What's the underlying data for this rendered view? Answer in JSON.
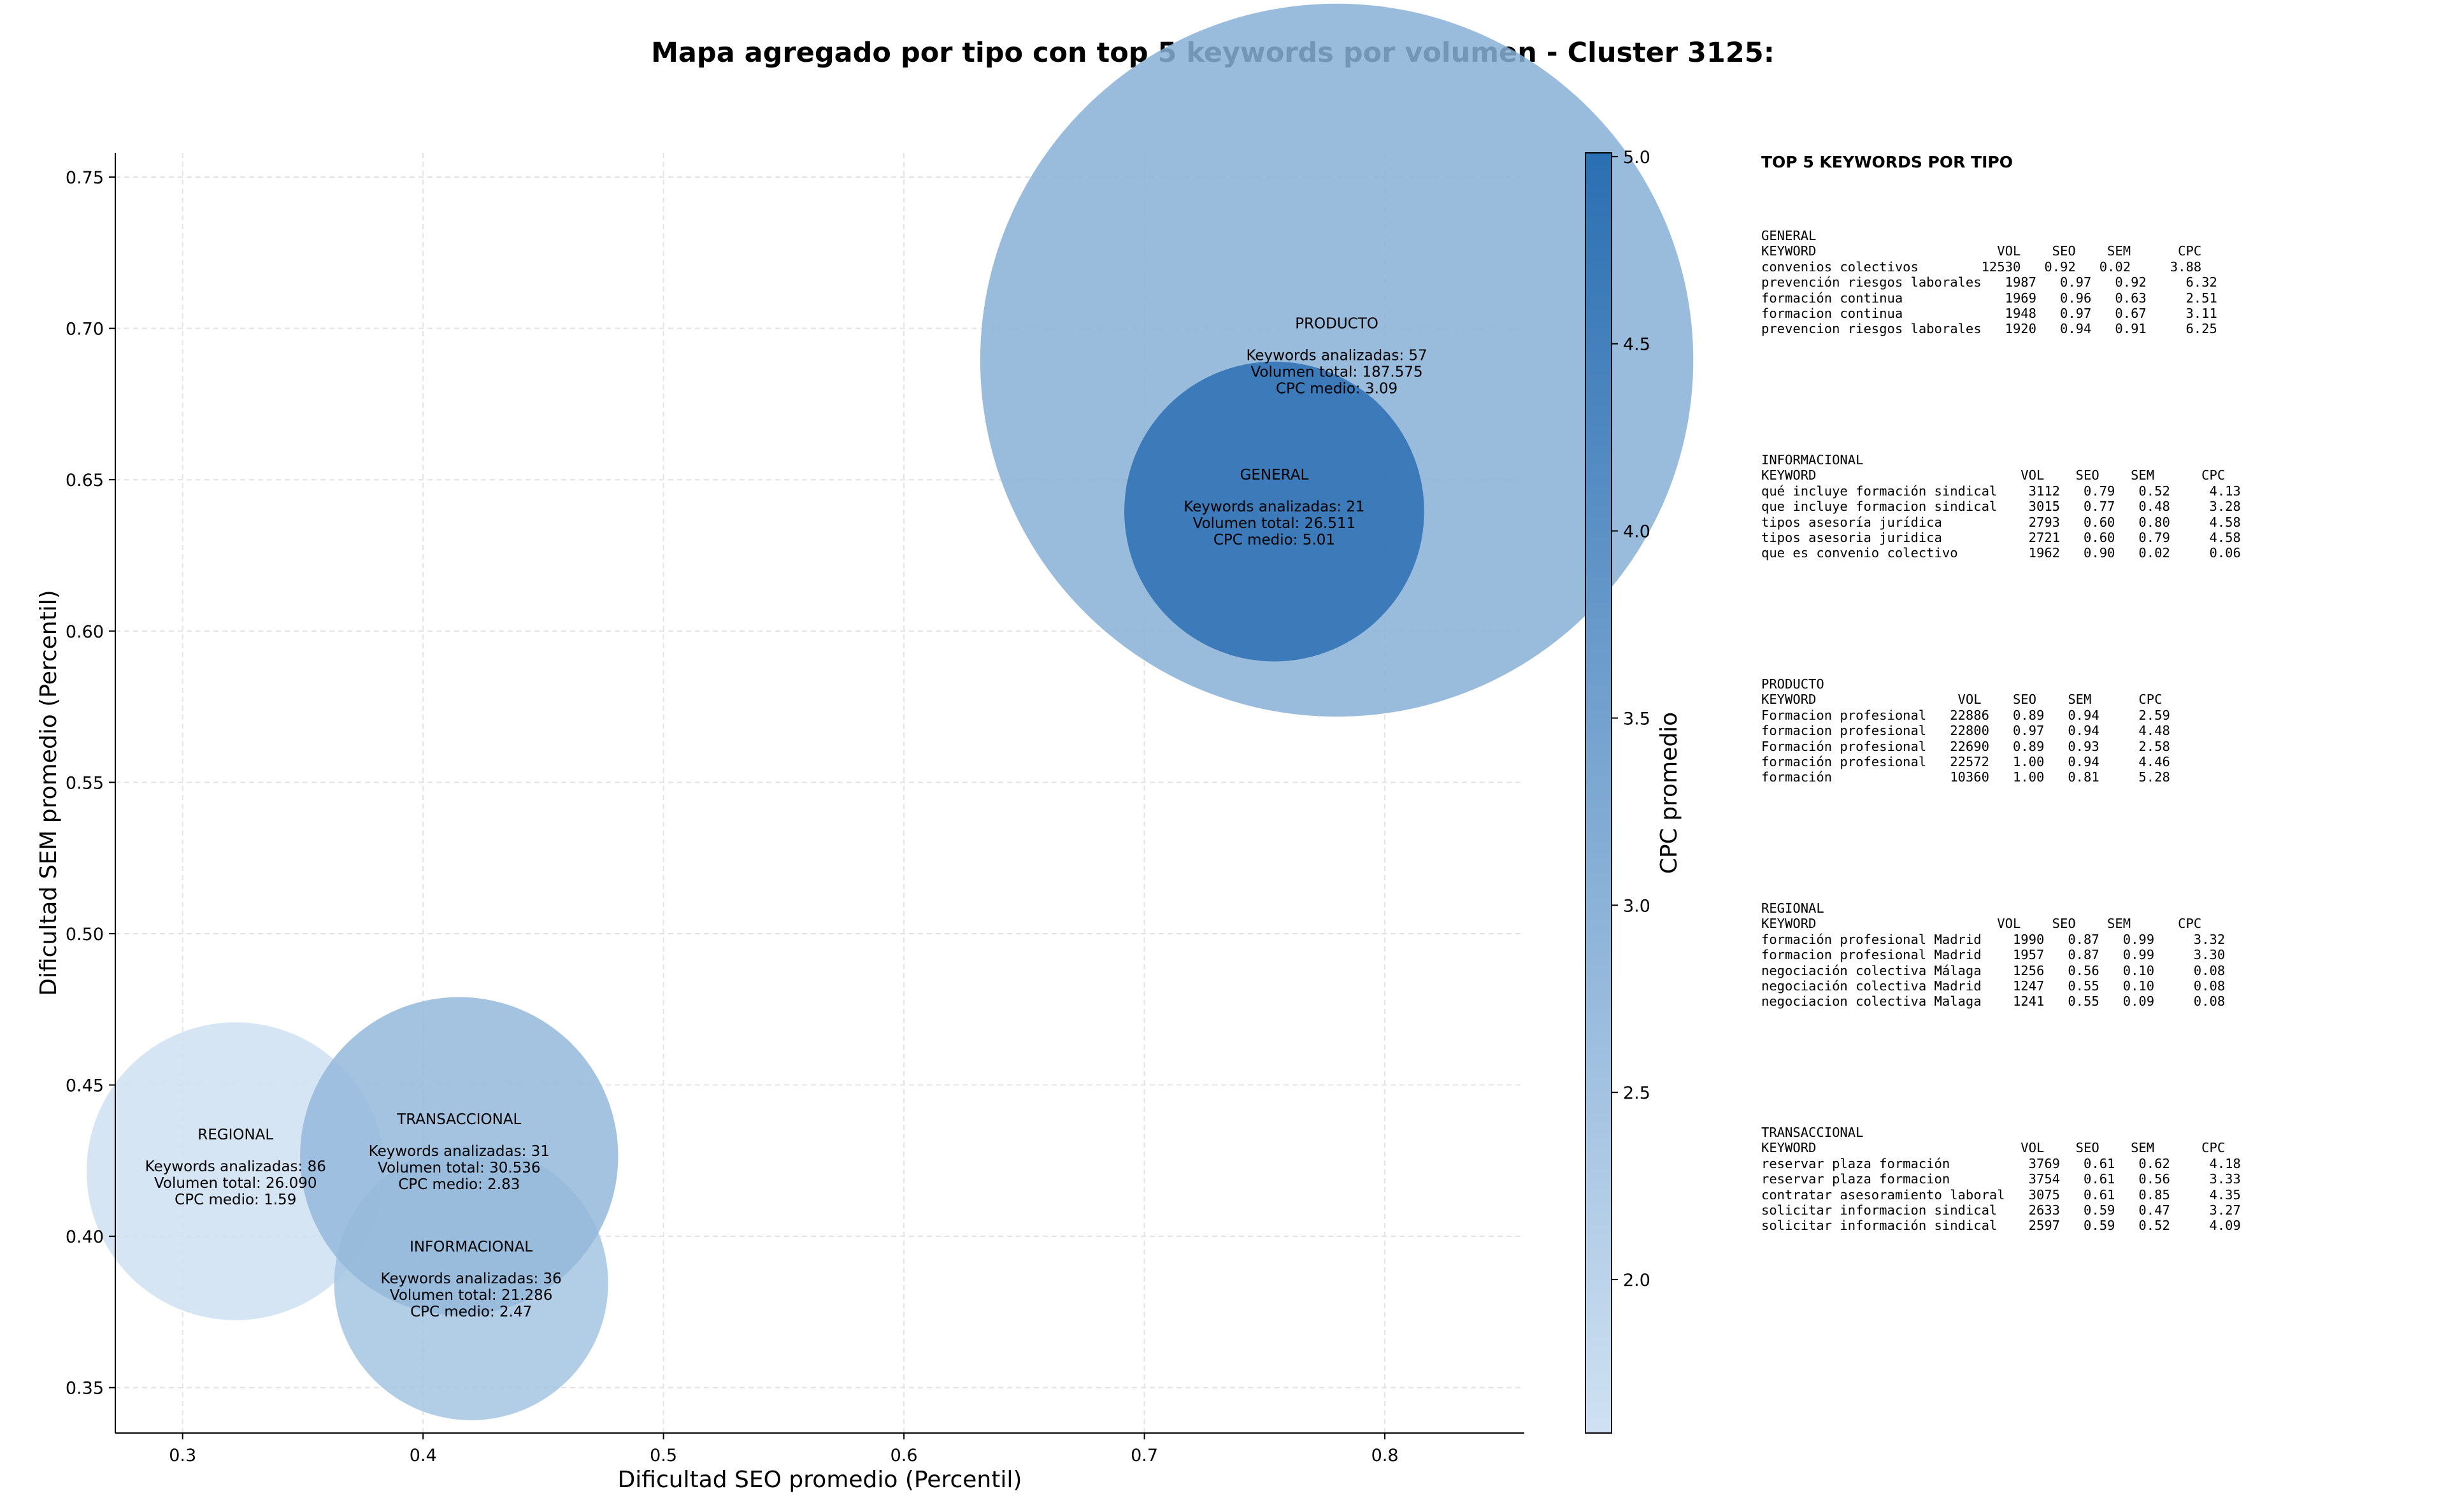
{
  "chart_data": {
    "type": "scatter",
    "title": "Mapa agregado por tipo con top 5 keywords por volumen - Cluster 3125:",
    "xlabel": "Dificultad SEO promedio (Percentil)",
    "ylabel": "Dificultad SEM promedio (Percentil)",
    "xlim": [
      0.272,
      0.858
    ],
    "ylim": [
      0.335,
      0.758
    ],
    "xticks": [
      "0.3",
      "0.4",
      "0.5",
      "0.6",
      "0.7",
      "0.8"
    ],
    "yticks": [
      "0.35",
      "0.40",
      "0.45",
      "0.50",
      "0.55",
      "0.60",
      "0.65",
      "0.70",
      "0.75"
    ],
    "grid": true,
    "colorbar": {
      "label": "CPC promedio",
      "range": [
        1.59,
        5.01
      ],
      "ticks": [
        "2.0",
        "2.5",
        "3.0",
        "3.5",
        "4.0",
        "4.5",
        "5.0"
      ],
      "color_low": "#cfe1f2",
      "color_high": "#2b6fb3"
    },
    "points": [
      {
        "label": "REGIONAL",
        "x": 0.322,
        "y": 0.4215,
        "keywords": 86,
        "volume": 26090,
        "cpc": 1.59,
        "text_keywords": "Keywords analizadas: 86",
        "text_volume": "Volumen total: 26.090",
        "text_cpc": "CPC medio: 1.59"
      },
      {
        "label": "TRANSACCIONAL",
        "x": 0.415,
        "y": 0.4265,
        "keywords": 31,
        "volume": 30536,
        "cpc": 2.83,
        "text_keywords": "Keywords analizadas: 31",
        "text_volume": "Volumen total: 30.536",
        "text_cpc": "CPC medio: 2.83"
      },
      {
        "label": "INFORMACIONAL",
        "x": 0.42,
        "y": 0.3845,
        "keywords": 36,
        "volume": 21286,
        "cpc": 2.47,
        "text_keywords": "Keywords analizadas: 36",
        "text_volume": "Volumen total: 21.286",
        "text_cpc": "CPC medio: 2.47"
      },
      {
        "label": "GENERAL",
        "x": 0.754,
        "y": 0.6395,
        "keywords": 21,
        "volume": 26511,
        "cpc": 5.01,
        "text_keywords": "Keywords analizadas: 21",
        "text_volume": "Volumen total: 26.511",
        "text_cpc": "CPC medio: 5.01"
      },
      {
        "label": "PRODUCTO",
        "x": 0.78,
        "y": 0.6895,
        "keywords": 57,
        "volume": 187575,
        "cpc": 3.09,
        "text_keywords": "Keywords analizadas: 57",
        "text_volume": "Volumen total: 187.575",
        "text_cpc": "CPC medio: 3.09"
      }
    ]
  },
  "side_panel": {
    "title": "TOP 5 KEYWORDS POR TIPO",
    "blocks": [
      {
        "type": "GENERAL",
        "header": "KEYWORD                       VOL    SEO    SEM      CPC",
        "rows": [
          "convenios colectivos        12530   0.92   0.02     3.88",
          "prevención riesgos laborales   1987   0.97   0.92     6.32",
          "formación continua             1969   0.96   0.63     2.51",
          "formacion continua             1948   0.97   0.67     3.11",
          "prevencion riesgos laborales   1920   0.94   0.91     6.25"
        ]
      },
      {
        "type": "INFORMACIONAL",
        "header": "KEYWORD                          VOL    SEO    SEM      CPC",
        "rows": [
          "qué incluye formación sindical    3112   0.79   0.52     4.13",
          "que incluye formacion sindical    3015   0.77   0.48     3.28",
          "tipos asesoría jurídica           2793   0.60   0.80     4.58",
          "tipos asesoria juridica           2721   0.60   0.79     4.58",
          "que es convenio colectivo         1962   0.90   0.02     0.06"
        ]
      },
      {
        "type": "PRODUCTO",
        "header": "KEYWORD                  VOL    SEO    SEM      CPC",
        "rows": [
          "Formacion profesional   22886   0.89   0.94     2.59",
          "formacion profesional   22800   0.97   0.94     4.48",
          "Formación profesional   22690   0.89   0.93     2.58",
          "formación profesional   22572   1.00   0.94     4.46",
          "formación               10360   1.00   0.81     5.28"
        ]
      },
      {
        "type": "REGIONAL",
        "header": "KEYWORD                       VOL    SEO    SEM      CPC",
        "rows": [
          "formación profesional Madrid    1990   0.87   0.99     3.32",
          "formacion profesional Madrid    1957   0.87   0.99     3.30",
          "negociación colectiva Málaga    1256   0.56   0.10     0.08",
          "negociación colectiva Madrid    1247   0.55   0.10     0.08",
          "negociacion colectiva Malaga    1241   0.55   0.09     0.08"
        ]
      },
      {
        "type": "TRANSACCIONAL",
        "header": "KEYWORD                          VOL    SEO    SEM      CPC",
        "rows": [
          "reservar plaza formación          3769   0.61   0.62     4.18",
          "reservar plaza formacion          3754   0.61   0.56     3.33",
          "contratar asesoramiento laboral   3075   0.61   0.85     4.35",
          "solicitar informacion sindical    2633   0.59   0.47     3.27",
          "solicitar información sindical    2597   0.59   0.52     4.09"
        ]
      }
    ]
  }
}
